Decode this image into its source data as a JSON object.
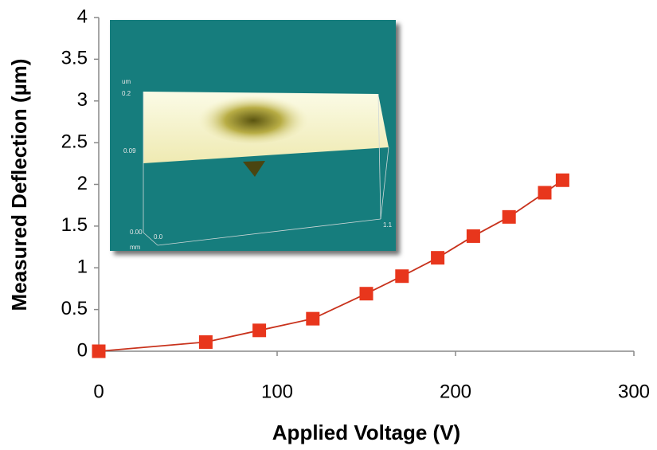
{
  "chart_data": {
    "type": "line",
    "x_label": "Applied Voltage (V)",
    "y_label": "Measured Deflection (µm)",
    "x": [
      0,
      60,
      90,
      120,
      150,
      170,
      190,
      210,
      230,
      250,
      260
    ],
    "values": [
      0,
      0.11,
      0.25,
      0.39,
      0.69,
      0.9,
      1.12,
      1.38,
      1.61,
      1.9,
      2.05
    ],
    "line_color": "#c8321c",
    "marker_color": "#e8361c",
    "marker": "square",
    "xlim": [
      0,
      300
    ],
    "xticks": [
      0,
      100,
      200,
      300
    ],
    "ylim": [
      0,
      4
    ],
    "yticks": [
      0,
      0.5,
      1,
      1.5,
      2,
      2.5,
      3,
      3.5,
      4
    ],
    "grid": false,
    "annotations": [
      "um",
      "0.2",
      "0.09",
      "0.00",
      "0.0",
      "mm",
      "1.1"
    ]
  }
}
